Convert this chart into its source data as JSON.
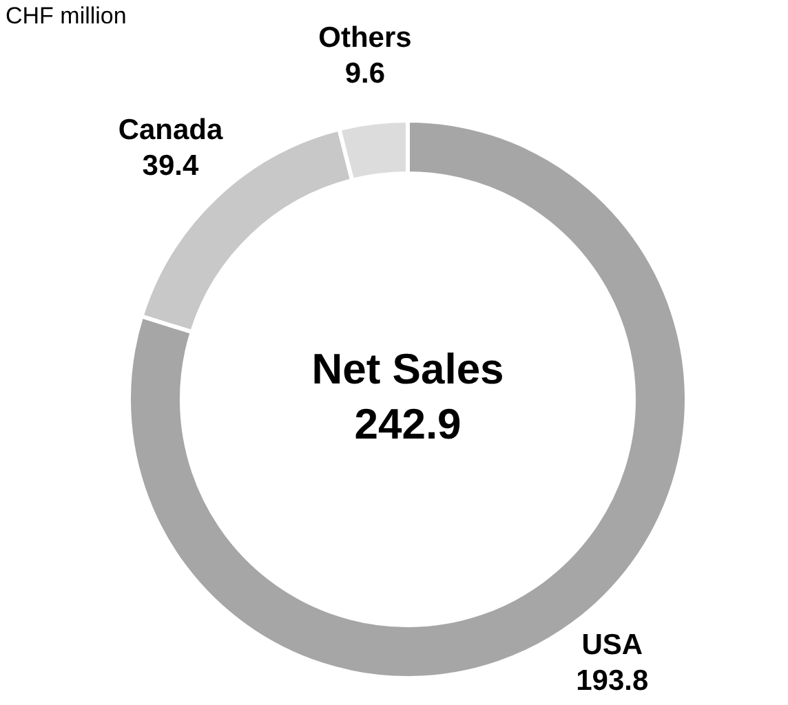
{
  "chart_data": {
    "type": "donut",
    "title": "CHF million",
    "categories": [
      "USA",
      "Canada",
      "Others"
    ],
    "values": [
      193.8,
      39.4,
      9.6
    ],
    "colors": [
      "#a6a6a6",
      "#c8c8c8",
      "#dcdcdc"
    ],
    "data_labels": true,
    "annotations": [
      "Net Sales",
      "242.9"
    ]
  }
}
